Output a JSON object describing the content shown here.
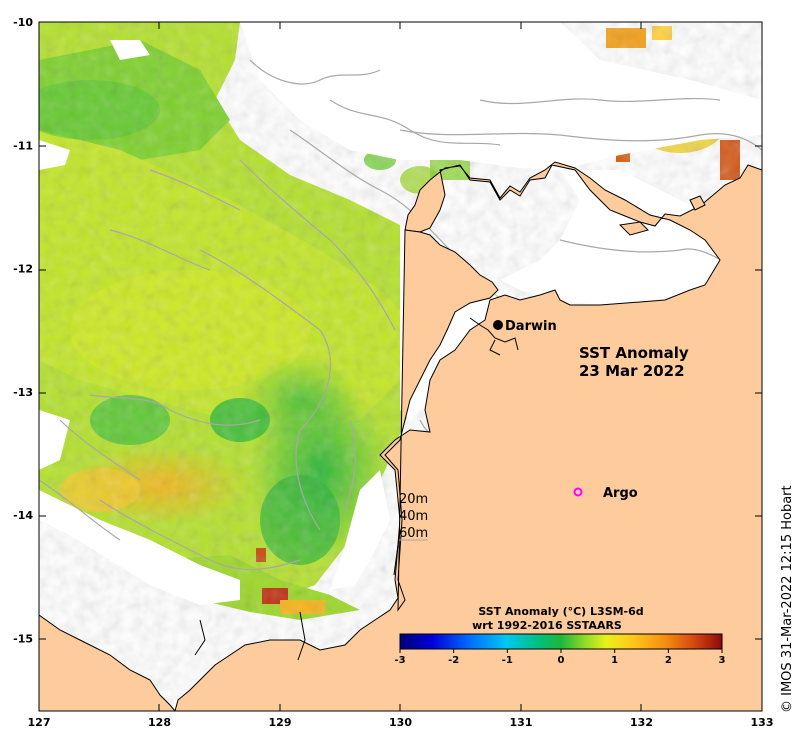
{
  "map": {
    "title_line1": "SST Anomaly",
    "title_line2": "23 Mar 2022",
    "place": "Darwin",
    "argo_label": "Argo",
    "depth_labels": [
      "20m",
      "40m",
      "60m"
    ],
    "credit": "© IMOS 31-Mar-2022 12:15 Hobart",
    "lon_ticks": [
      "127",
      "128",
      "129",
      "130",
      "131",
      "132",
      "133"
    ],
    "lat_ticks": [
      "-10",
      "-11",
      "-12",
      "-13",
      "-14",
      "-15"
    ],
    "colorbar": {
      "title_line1": "SST Anomaly (°C) L3SM-6d",
      "title_line2": "wrt 1992-2016 SSTAARS",
      "ticks": [
        "-3",
        "-2",
        "-1",
        "0",
        "1",
        "2",
        "3"
      ]
    },
    "colors": {
      "land": "#fdcb9c",
      "no_data": "#ffffff",
      "bathymetry": "#a8a8a8",
      "argo": "#ff00ff"
    }
  }
}
